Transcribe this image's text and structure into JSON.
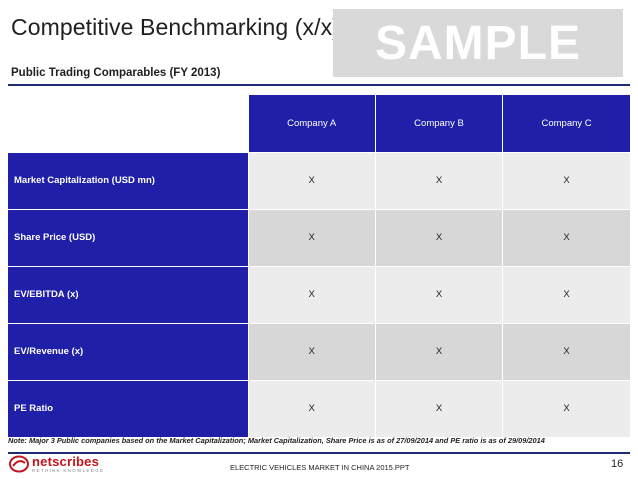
{
  "header": {
    "title": "Competitive Benchmarking (x/x)",
    "watermark": "SAMPLE",
    "subtitle": "Public Trading Comparables (FY 2013)"
  },
  "table": {
    "columns": [
      "Company A",
      "Company B",
      "Company C"
    ],
    "rows": [
      {
        "metric": "Market Capitalization (USD mn)",
        "values": [
          "X",
          "X",
          "X"
        ]
      },
      {
        "metric": "Share Price (USD)",
        "values": [
          "X",
          "X",
          "X"
        ]
      },
      {
        "metric": "EV/EBITDA (x)",
        "values": [
          "X",
          "X",
          "X"
        ]
      },
      {
        "metric": "EV/Revenue (x)",
        "values": [
          "X",
          "X",
          "X"
        ]
      },
      {
        "metric": "PE Ratio",
        "values": [
          "X",
          "X",
          "X"
        ]
      }
    ]
  },
  "note": "Note: Major 3 Public companies based on the Market Capitalization; Market Capitalization, Share Price is as of 27/09/2014 and PE ratio is as of 29/09/2014",
  "footer": {
    "logo_word": "netscribes",
    "logo_tagline": "RETHINK KNOWLEDGE",
    "document_name": "ELECTRIC VEHICLES MARKET IN CHINA 2015.PPT",
    "page_number": "16"
  },
  "colors": {
    "header_blue": "#1f1fa8",
    "rule_navy": "#1f2a7a",
    "logo_red": "#c0161d",
    "watermark_gray": "#d9d9d9"
  }
}
